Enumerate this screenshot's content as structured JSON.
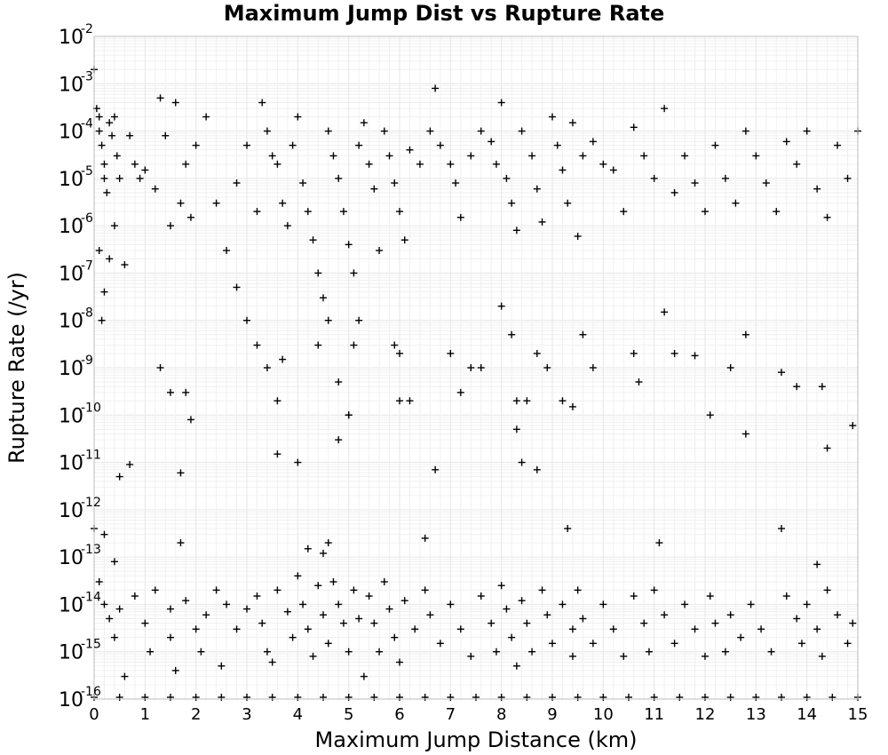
{
  "chart_data": {
    "type": "scatter",
    "title": "Maximum Jump Dist vs Rupture Rate",
    "xlabel": "Maximum Jump Distance (km)",
    "ylabel": "Rupture Rate (/yr)",
    "xlim": [
      0,
      15
    ],
    "ylim": [
      1e-16,
      0.01
    ],
    "yscale": "log",
    "grid": true,
    "marker": "+",
    "marker_color": "#000000",
    "xticks": [
      "0",
      "1",
      "2",
      "3",
      "4",
      "5",
      "6",
      "7",
      "8",
      "9",
      "10",
      "11",
      "12",
      "13",
      "14",
      "15"
    ],
    "yticks": [
      {
        "base": "10",
        "exp": "-16"
      },
      {
        "base": "10",
        "exp": "-15"
      },
      {
        "base": "10",
        "exp": "-14"
      },
      {
        "base": "10",
        "exp": "-13"
      },
      {
        "base": "10",
        "exp": "-12"
      },
      {
        "base": "10",
        "exp": "-11"
      },
      {
        "base": "10",
        "exp": "-10"
      },
      {
        "base": "10",
        "exp": "-9"
      },
      {
        "base": "10",
        "exp": "-8"
      },
      {
        "base": "10",
        "exp": "-7"
      },
      {
        "base": "10",
        "exp": "-6"
      },
      {
        "base": "10",
        "exp": "-5"
      },
      {
        "base": "10",
        "exp": "-4"
      },
      {
        "base": "10",
        "exp": "-3"
      },
      {
        "base": "10",
        "exp": "-2"
      }
    ],
    "points": [
      [
        0.0,
        0.002
      ],
      [
        0.05,
        0.0003
      ],
      [
        0.1,
        0.0002
      ],
      [
        0.1,
        0.0001
      ],
      [
        0.15,
        5e-05
      ],
      [
        0.2,
        2e-05
      ],
      [
        0.2,
        1e-05
      ],
      [
        0.25,
        5e-06
      ],
      [
        0.3,
        0.00015
      ],
      [
        0.35,
        8e-05
      ],
      [
        0.4,
        0.0002
      ],
      [
        0.45,
        3e-05
      ],
      [
        0.5,
        1e-05
      ],
      [
        0.1,
        3e-07
      ],
      [
        0.15,
        1e-08
      ],
      [
        0.2,
        4e-08
      ],
      [
        0.3,
        2e-07
      ],
      [
        0.4,
        1e-06
      ],
      [
        0.6,
        1.5e-07
      ],
      [
        0.7,
        8e-05
      ],
      [
        0.8,
        2e-05
      ],
      [
        0.9,
        1e-05
      ],
      [
        1.0,
        1.5e-05
      ],
      [
        1.2,
        6e-06
      ],
      [
        1.3,
        0.0005
      ],
      [
        1.4,
        8e-05
      ],
      [
        1.5,
        1e-06
      ],
      [
        1.6,
        0.0004
      ],
      [
        1.7,
        3e-06
      ],
      [
        1.8,
        2e-05
      ],
      [
        1.9,
        1.5e-06
      ],
      [
        2.0,
        5e-05
      ],
      [
        2.2,
        0.0002
      ],
      [
        2.4,
        3e-06
      ],
      [
        2.6,
        3e-07
      ],
      [
        2.8,
        8e-06
      ],
      [
        3.0,
        5e-05
      ],
      [
        3.2,
        2e-06
      ],
      [
        3.3,
        0.0004
      ],
      [
        3.4,
        0.0001
      ],
      [
        3.5,
        3e-05
      ],
      [
        3.6,
        2e-05
      ],
      [
        3.7,
        3e-06
      ],
      [
        3.8,
        1e-06
      ],
      [
        3.9,
        5e-05
      ],
      [
        4.0,
        0.0002
      ],
      [
        4.1,
        8e-06
      ],
      [
        4.2,
        2e-06
      ],
      [
        4.3,
        5e-07
      ],
      [
        4.4,
        1e-07
      ],
      [
        4.5,
        3e-08
      ],
      [
        4.6,
        0.0001
      ],
      [
        4.7,
        3e-05
      ],
      [
        4.8,
        1e-05
      ],
      [
        4.9,
        2e-06
      ],
      [
        5.0,
        4e-07
      ],
      [
        5.1,
        1e-07
      ],
      [
        5.2,
        5e-05
      ],
      [
        5.3,
        0.00015
      ],
      [
        5.4,
        2e-05
      ],
      [
        5.5,
        6e-06
      ],
      [
        5.6,
        3e-07
      ],
      [
        5.7,
        0.0001
      ],
      [
        5.8,
        3e-05
      ],
      [
        5.9,
        8e-06
      ],
      [
        6.0,
        2e-06
      ],
      [
        6.1,
        5e-07
      ],
      [
        6.2,
        4e-05
      ],
      [
        6.4,
        2e-05
      ],
      [
        6.6,
        0.0001
      ],
      [
        6.7,
        0.0008
      ],
      [
        6.8,
        5e-05
      ],
      [
        7.0,
        2e-05
      ],
      [
        7.1,
        8e-06
      ],
      [
        7.2,
        1.5e-06
      ],
      [
        7.4,
        3e-05
      ],
      [
        7.6,
        0.0001
      ],
      [
        7.8,
        6e-05
      ],
      [
        7.9,
        2e-05
      ],
      [
        8.0,
        0.0004
      ],
      [
        8.1,
        1e-05
      ],
      [
        8.2,
        3e-06
      ],
      [
        8.3,
        8e-07
      ],
      [
        8.4,
        0.0001
      ],
      [
        8.6,
        3e-05
      ],
      [
        8.7,
        6e-06
      ],
      [
        8.8,
        1.2e-06
      ],
      [
        9.0,
        0.0002
      ],
      [
        9.1,
        5e-05
      ],
      [
        9.2,
        1.5e-05
      ],
      [
        9.3,
        3e-06
      ],
      [
        9.4,
        0.00015
      ],
      [
        9.5,
        6e-07
      ],
      [
        9.6,
        3e-05
      ],
      [
        9.8,
        6e-05
      ],
      [
        10.0,
        2e-05
      ],
      [
        10.2,
        1.5e-05
      ],
      [
        10.4,
        2e-06
      ],
      [
        10.6,
        0.00012
      ],
      [
        10.8,
        3e-05
      ],
      [
        11.0,
        1e-05
      ],
      [
        11.2,
        0.0003
      ],
      [
        11.4,
        5e-06
      ],
      [
        11.6,
        3e-05
      ],
      [
        11.8,
        8e-06
      ],
      [
        12.0,
        2e-06
      ],
      [
        12.2,
        5e-05
      ],
      [
        12.4,
        1e-05
      ],
      [
        12.6,
        3e-06
      ],
      [
        12.8,
        0.0001
      ],
      [
        13.0,
        3e-05
      ],
      [
        13.2,
        8e-06
      ],
      [
        13.4,
        2e-06
      ],
      [
        13.6,
        6e-05
      ],
      [
        13.8,
        2e-05
      ],
      [
        14.0,
        0.0001
      ],
      [
        14.2,
        6e-06
      ],
      [
        14.4,
        1.5e-06
      ],
      [
        14.6,
        5e-05
      ],
      [
        14.8,
        1e-05
      ],
      [
        15.0,
        0.0001
      ],
      [
        2.8,
        5e-08
      ],
      [
        3.0,
        1e-08
      ],
      [
        3.2,
        3e-09
      ],
      [
        3.4,
        1e-09
      ],
      [
        3.6,
        2e-10
      ],
      [
        3.7,
        1.5e-09
      ],
      [
        4.4,
        3e-09
      ],
      [
        4.6,
        1e-08
      ],
      [
        4.8,
        5e-10
      ],
      [
        5.0,
        1e-10
      ],
      [
        5.1,
        3e-09
      ],
      [
        5.2,
        1e-08
      ],
      [
        5.9,
        3e-09
      ],
      [
        6.0,
        2e-09
      ],
      [
        6.2,
        2e-10
      ],
      [
        7.0,
        2e-09
      ],
      [
        7.2,
        3e-10
      ],
      [
        7.4,
        1e-09
      ],
      [
        7.6,
        1e-09
      ],
      [
        8.0,
        2e-08
      ],
      [
        8.2,
        5e-09
      ],
      [
        8.3,
        2e-10
      ],
      [
        8.3,
        5e-11
      ],
      [
        8.4,
        1e-11
      ],
      [
        8.5,
        2e-10
      ],
      [
        8.7,
        2e-09
      ],
      [
        8.9,
        1e-09
      ],
      [
        9.2,
        2e-10
      ],
      [
        9.4,
        1.5e-10
      ],
      [
        9.6,
        5e-09
      ],
      [
        9.8,
        1e-09
      ],
      [
        10.6,
        2e-09
      ],
      [
        10.7,
        5e-10
      ],
      [
        11.2,
        1.5e-08
      ],
      [
        11.4,
        2e-09
      ],
      [
        11.8,
        1.8e-09
      ],
      [
        12.1,
        1e-10
      ],
      [
        12.5,
        1e-09
      ],
      [
        12.8,
        5e-09
      ],
      [
        12.8,
        4e-11
      ],
      [
        13.5,
        8e-10
      ],
      [
        13.8,
        4e-10
      ],
      [
        14.3,
        4e-10
      ],
      [
        14.4,
        2e-11
      ],
      [
        14.9,
        6e-11
      ],
      [
        1.3,
        1e-09
      ],
      [
        1.5,
        3e-10
      ],
      [
        1.8,
        3e-10
      ],
      [
        1.9,
        8e-11
      ],
      [
        0.5,
        5e-12
      ],
      [
        0.7,
        9e-12
      ],
      [
        1.7,
        6e-12
      ],
      [
        4.0,
        1e-11
      ],
      [
        3.6,
        1.5e-11
      ],
      [
        4.8,
        3e-11
      ],
      [
        5.0,
        1e-10
      ],
      [
        6.0,
        2e-10
      ],
      [
        6.7,
        7e-12
      ],
      [
        8.7,
        7e-12
      ],
      [
        0.0,
        4e-13
      ],
      [
        0.2,
        3e-13
      ],
      [
        0.4,
        8e-14
      ],
      [
        1.7,
        2e-13
      ],
      [
        4.2,
        1.5e-13
      ],
      [
        4.5,
        1.2e-13
      ],
      [
        4.6,
        2e-13
      ],
      [
        6.5,
        2.5e-13
      ],
      [
        9.3,
        4e-13
      ],
      [
        11.1,
        2e-13
      ],
      [
        13.5,
        4e-13
      ],
      [
        14.2,
        7e-14
      ],
      [
        0.1,
        3e-14
      ],
      [
        0.2,
        1e-14
      ],
      [
        0.3,
        5e-15
      ],
      [
        0.4,
        2e-15
      ],
      [
        0.5,
        8e-15
      ],
      [
        0.6,
        3e-16
      ],
      [
        0.8,
        1.5e-14
      ],
      [
        1.0,
        4e-15
      ],
      [
        1.1,
        1e-15
      ],
      [
        1.2,
        2e-14
      ],
      [
        1.5,
        8e-15
      ],
      [
        1.5,
        2e-15
      ],
      [
        1.6,
        4e-16
      ],
      [
        1.8,
        1.2e-14
      ],
      [
        2.0,
        3e-15
      ],
      [
        2.1,
        1e-15
      ],
      [
        2.2,
        6e-15
      ],
      [
        2.4,
        2e-14
      ],
      [
        2.5,
        5e-16
      ],
      [
        2.6,
        1e-14
      ],
      [
        2.8,
        3e-15
      ],
      [
        3.0,
        8e-15
      ],
      [
        3.2,
        1.5e-14
      ],
      [
        3.3,
        4e-15
      ],
      [
        3.4,
        1e-15
      ],
      [
        3.5,
        6e-16
      ],
      [
        3.6,
        2e-14
      ],
      [
        3.8,
        7e-15
      ],
      [
        3.9,
        2e-15
      ],
      [
        4.0,
        4e-14
      ],
      [
        4.1,
        1e-14
      ],
      [
        4.2,
        3e-15
      ],
      [
        4.3,
        8e-16
      ],
      [
        4.4,
        2.5e-14
      ],
      [
        4.5,
        6e-15
      ],
      [
        4.6,
        1.5e-15
      ],
      [
        4.7,
        3e-14
      ],
      [
        4.8,
        1e-14
      ],
      [
        4.9,
        4e-15
      ],
      [
        5.0,
        1e-15
      ],
      [
        5.1,
        2e-14
      ],
      [
        5.2,
        5e-15
      ],
      [
        5.3,
        3e-16
      ],
      [
        5.4,
        1.5e-14
      ],
      [
        5.5,
        4e-15
      ],
      [
        5.6,
        1e-15
      ],
      [
        5.7,
        3e-14
      ],
      [
        5.8,
        8e-15
      ],
      [
        5.9,
        2e-15
      ],
      [
        6.0,
        6e-16
      ],
      [
        6.1,
        1.2e-14
      ],
      [
        6.3,
        3e-15
      ],
      [
        6.5,
        2e-14
      ],
      [
        6.6,
        6e-15
      ],
      [
        6.8,
        1.5e-15
      ],
      [
        7.0,
        1e-14
      ],
      [
        7.2,
        3e-15
      ],
      [
        7.4,
        8e-16
      ],
      [
        7.6,
        1.5e-14
      ],
      [
        7.8,
        4e-15
      ],
      [
        7.9,
        1e-15
      ],
      [
        8.0,
        2.5e-14
      ],
      [
        8.1,
        8e-15
      ],
      [
        8.2,
        2e-15
      ],
      [
        8.3,
        5e-16
      ],
      [
        8.4,
        1.2e-14
      ],
      [
        8.5,
        4e-15
      ],
      [
        8.6,
        1e-15
      ],
      [
        8.8,
        2e-14
      ],
      [
        8.9,
        6e-15
      ],
      [
        9.0,
        1.5e-15
      ],
      [
        9.2,
        1e-14
      ],
      [
        9.4,
        3e-15
      ],
      [
        9.4,
        8e-16
      ],
      [
        9.5,
        2e-14
      ],
      [
        9.6,
        5e-15
      ],
      [
        9.8,
        1.5e-15
      ],
      [
        10.0,
        1e-14
      ],
      [
        10.2,
        3e-15
      ],
      [
        10.4,
        8e-16
      ],
      [
        10.6,
        1.5e-14
      ],
      [
        10.8,
        4e-15
      ],
      [
        10.9,
        1e-15
      ],
      [
        11.0,
        2e-14
      ],
      [
        11.2,
        6e-15
      ],
      [
        11.4,
        1.5e-15
      ],
      [
        11.6,
        1e-14
      ],
      [
        11.8,
        3e-15
      ],
      [
        12.0,
        8e-16
      ],
      [
        12.1,
        1.5e-14
      ],
      [
        12.2,
        4e-15
      ],
      [
        12.4,
        1e-15
      ],
      [
        12.5,
        6e-15
      ],
      [
        12.7,
        2e-15
      ],
      [
        12.9,
        1e-14
      ],
      [
        13.1,
        3e-15
      ],
      [
        13.3,
        1e-15
      ],
      [
        13.6,
        1.5e-14
      ],
      [
        13.8,
        5e-15
      ],
      [
        13.9,
        1.5e-15
      ],
      [
        14.0,
        1e-14
      ],
      [
        14.2,
        3e-15
      ],
      [
        14.3,
        8e-16
      ],
      [
        14.4,
        2e-14
      ],
      [
        14.6,
        6e-15
      ],
      [
        14.8,
        1.5e-15
      ],
      [
        14.9,
        4e-15
      ],
      [
        0.0,
        1e-16
      ],
      [
        0.5,
        1e-16
      ],
      [
        1.0,
        1e-16
      ],
      [
        1.5,
        1e-16
      ],
      [
        2.0,
        1e-16
      ],
      [
        2.5,
        1e-16
      ],
      [
        3.0,
        1e-16
      ],
      [
        3.5,
        1e-16
      ],
      [
        4.0,
        1e-16
      ],
      [
        4.5,
        1e-16
      ],
      [
        5.0,
        1e-16
      ],
      [
        5.5,
        1e-16
      ],
      [
        6.0,
        1e-16
      ],
      [
        6.5,
        1e-16
      ],
      [
        7.0,
        1e-16
      ],
      [
        7.5,
        1e-16
      ],
      [
        8.0,
        1e-16
      ],
      [
        8.5,
        1e-16
      ],
      [
        9.0,
        1e-16
      ],
      [
        9.5,
        1e-16
      ],
      [
        10.0,
        1e-16
      ],
      [
        10.5,
        1e-16
      ],
      [
        11.0,
        1e-16
      ],
      [
        11.5,
        1e-16
      ],
      [
        12.0,
        1e-16
      ],
      [
        12.5,
        1e-16
      ],
      [
        13.0,
        1e-16
      ],
      [
        13.5,
        1e-16
      ],
      [
        14.0,
        1e-16
      ],
      [
        14.5,
        1e-16
      ],
      [
        15.0,
        1e-16
      ]
    ]
  }
}
